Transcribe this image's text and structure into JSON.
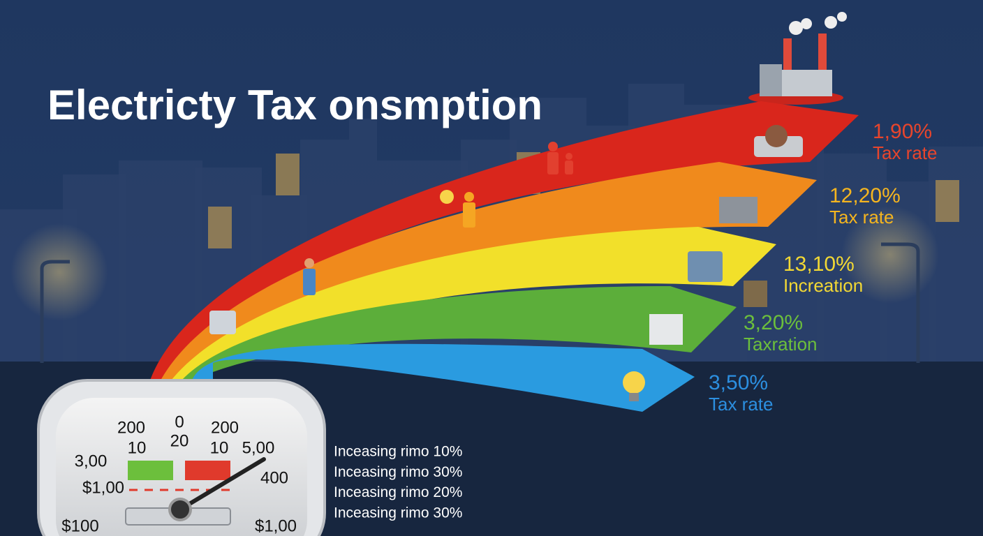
{
  "title": "Electricty Tax onsmption",
  "bands": [
    {
      "value": "1,90%",
      "caption": "Tax rate"
    },
    {
      "value": "12,20%",
      "caption": "Tax rate"
    },
    {
      "value": "13,10%",
      "caption": "Increation"
    },
    {
      "value": "3,20%",
      "caption": "Taxration"
    },
    {
      "value": "3,50%",
      "caption": "Tax rate"
    }
  ],
  "gauge": {
    "labels": [
      "200",
      "10",
      "0",
      "20",
      "200",
      "10",
      "5,00",
      "3,00",
      "400",
      "$1,00",
      "$100",
      "$1,00"
    ]
  },
  "notes": [
    "Inceasing rimo 10%",
    "Inceasing rimo 30%",
    "Inceasing rimo 20%",
    "Inceasing rimo 30%"
  ]
}
